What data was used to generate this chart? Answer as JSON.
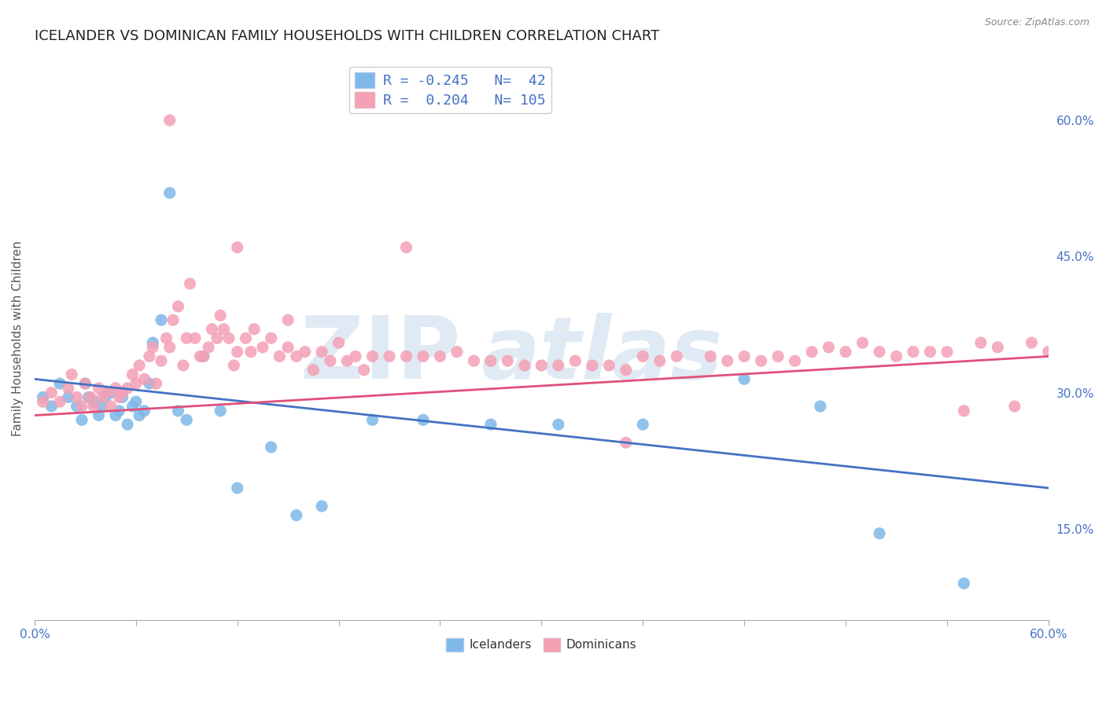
{
  "title": "ICELANDER VS DOMINICAN FAMILY HOUSEHOLDS WITH CHILDREN CORRELATION CHART",
  "source": "Source: ZipAtlas.com",
  "ylabel": "Family Households with Children",
  "xlim": [
    0.0,
    0.6
  ],
  "ylim": [
    0.05,
    0.67
  ],
  "xticks": [
    0.0,
    0.06,
    0.12,
    0.18,
    0.24,
    0.3,
    0.36,
    0.42,
    0.48,
    0.54,
    0.6
  ],
  "yticks_right": [
    0.15,
    0.3,
    0.45,
    0.6
  ],
  "ytick_labels_right": [
    "15.0%",
    "30.0%",
    "45.0%",
    "60.0%"
  ],
  "series_icelanders": {
    "name": "Icelanders",
    "R": -0.245,
    "N": 42,
    "color": "#7eb8e8",
    "line_color": "#4472c4",
    "x": [
      0.005,
      0.01,
      0.015,
      0.02,
      0.025,
      0.028,
      0.03,
      0.032,
      0.035,
      0.038,
      0.04,
      0.042,
      0.045,
      0.048,
      0.05,
      0.052,
      0.055,
      0.058,
      0.06,
      0.062,
      0.065,
      0.068,
      0.07,
      0.075,
      0.08,
      0.085,
      0.09,
      0.1,
      0.11,
      0.12,
      0.14,
      0.155,
      0.17,
      0.2,
      0.23,
      0.27,
      0.31,
      0.36,
      0.42,
      0.465,
      0.5,
      0.55
    ],
    "y": [
      0.295,
      0.285,
      0.31,
      0.295,
      0.285,
      0.27,
      0.31,
      0.295,
      0.29,
      0.275,
      0.285,
      0.295,
      0.3,
      0.275,
      0.28,
      0.295,
      0.265,
      0.285,
      0.29,
      0.275,
      0.28,
      0.31,
      0.355,
      0.38,
      0.52,
      0.28,
      0.27,
      0.34,
      0.28,
      0.195,
      0.24,
      0.165,
      0.175,
      0.27,
      0.27,
      0.265,
      0.265,
      0.265,
      0.315,
      0.285,
      0.145,
      0.09
    ]
  },
  "series_dominicans": {
    "name": "Dominicans",
    "R": 0.204,
    "N": 105,
    "color": "#f4a0b5",
    "line_color": "#e0507a",
    "x": [
      0.005,
      0.01,
      0.015,
      0.02,
      0.022,
      0.025,
      0.028,
      0.03,
      0.033,
      0.035,
      0.038,
      0.04,
      0.043,
      0.045,
      0.048,
      0.05,
      0.052,
      0.055,
      0.058,
      0.06,
      0.062,
      0.065,
      0.068,
      0.07,
      0.072,
      0.075,
      0.078,
      0.08,
      0.082,
      0.085,
      0.088,
      0.09,
      0.092,
      0.095,
      0.098,
      0.1,
      0.103,
      0.105,
      0.108,
      0.11,
      0.112,
      0.115,
      0.118,
      0.12,
      0.125,
      0.128,
      0.13,
      0.135,
      0.14,
      0.145,
      0.15,
      0.155,
      0.16,
      0.165,
      0.17,
      0.175,
      0.18,
      0.185,
      0.19,
      0.195,
      0.2,
      0.21,
      0.22,
      0.23,
      0.24,
      0.25,
      0.26,
      0.27,
      0.28,
      0.29,
      0.3,
      0.31,
      0.32,
      0.33,
      0.34,
      0.35,
      0.36,
      0.37,
      0.38,
      0.4,
      0.41,
      0.42,
      0.43,
      0.44,
      0.45,
      0.46,
      0.47,
      0.48,
      0.49,
      0.5,
      0.51,
      0.52,
      0.53,
      0.54,
      0.55,
      0.56,
      0.57,
      0.58,
      0.59,
      0.6,
      0.08,
      0.12,
      0.15,
      0.22,
      0.35
    ],
    "y": [
      0.29,
      0.3,
      0.29,
      0.305,
      0.32,
      0.295,
      0.285,
      0.31,
      0.295,
      0.285,
      0.305,
      0.295,
      0.3,
      0.285,
      0.305,
      0.295,
      0.3,
      0.305,
      0.32,
      0.31,
      0.33,
      0.315,
      0.34,
      0.35,
      0.31,
      0.335,
      0.36,
      0.35,
      0.38,
      0.395,
      0.33,
      0.36,
      0.42,
      0.36,
      0.34,
      0.34,
      0.35,
      0.37,
      0.36,
      0.385,
      0.37,
      0.36,
      0.33,
      0.345,
      0.36,
      0.345,
      0.37,
      0.35,
      0.36,
      0.34,
      0.35,
      0.34,
      0.345,
      0.325,
      0.345,
      0.335,
      0.355,
      0.335,
      0.34,
      0.325,
      0.34,
      0.34,
      0.34,
      0.34,
      0.34,
      0.345,
      0.335,
      0.335,
      0.335,
      0.33,
      0.33,
      0.33,
      0.335,
      0.33,
      0.33,
      0.325,
      0.34,
      0.335,
      0.34,
      0.34,
      0.335,
      0.34,
      0.335,
      0.34,
      0.335,
      0.345,
      0.35,
      0.345,
      0.355,
      0.345,
      0.34,
      0.345,
      0.345,
      0.345,
      0.28,
      0.355,
      0.35,
      0.285,
      0.355,
      0.345,
      0.6,
      0.46,
      0.38,
      0.46,
      0.245
    ]
  },
  "title_fontsize": 13,
  "background_color": "#ffffff",
  "grid_color": "#cccccc",
  "label_color": "#4472c4"
}
